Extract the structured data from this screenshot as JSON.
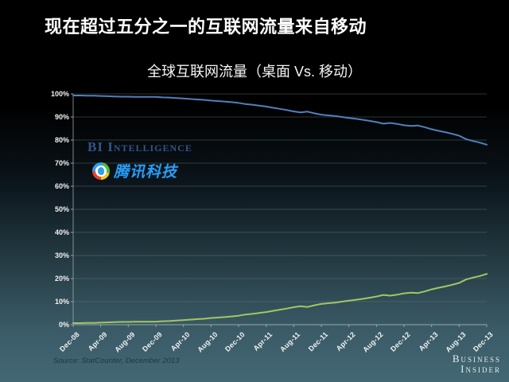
{
  "slide": {
    "title": "现在超过五分之一的互联网流量来自移动",
    "watermark": "BI Intelligence",
    "tencent_logo_text": "腾讯科技",
    "source": "Source: StatCounter, December 2013",
    "brand_line1": "Business",
    "brand_line2": "Insider"
  },
  "colors": {
    "background_top": "#000000",
    "background_bottom": "#436874",
    "title_text": "#ffffff",
    "grid": "#6e7d82",
    "axis": "#9aa7ab",
    "desktop_line": "#4f81bd",
    "mobile_line": "#a3c662",
    "watermark_text": "#33538a",
    "tencent_blue": "#2b9df0",
    "source_text": "#1e3842",
    "brand_text": "#e4edee"
  },
  "chart_data": {
    "type": "line",
    "title": "全球互联网流量（桌面 Vs. 移动）",
    "xlabel": "",
    "ylabel": "",
    "ylim": [
      0,
      100
    ],
    "grid": true,
    "legend": "none",
    "y_tick_labels": [
      "0%",
      "10%",
      "20%",
      "30%",
      "40%",
      "50%",
      "60%",
      "70%",
      "80%",
      "90%",
      "100%"
    ],
    "x_tick_labels": [
      "Dec-08",
      "Apr-09",
      "Aug-09",
      "Dec-09",
      "Apr-10",
      "Aug-10",
      "Dec-10",
      "Apr-11",
      "Aug-11",
      "Dec-11",
      "Apr-12",
      "Aug-12",
      "Dec-12",
      "Apr-13",
      "Aug-13",
      "Dec-13"
    ],
    "x_tick_every_n_points": 4,
    "x_unit": "month",
    "series": [
      {
        "name": "桌面",
        "color": "#4f81bd",
        "values": [
          99.3,
          99.3,
          99.2,
          99.2,
          99.1,
          99.0,
          98.9,
          98.8,
          98.8,
          98.7,
          98.7,
          98.7,
          98.7,
          98.5,
          98.4,
          98.2,
          98.0,
          97.8,
          97.6,
          97.4,
          97.1,
          96.9,
          96.7,
          96.4,
          96.1,
          95.6,
          95.3,
          94.9,
          94.5,
          94.0,
          93.5,
          93.0,
          92.4,
          92.0,
          92.3,
          91.6,
          91.0,
          90.7,
          90.4,
          90.0,
          89.6,
          89.2,
          88.8,
          88.3,
          87.8,
          87.1,
          87.4,
          87.0,
          86.4,
          86.1,
          86.3,
          85.6,
          84.7,
          84.0,
          83.4,
          82.7,
          81.9,
          80.4,
          79.6,
          78.9,
          78.0
        ]
      },
      {
        "name": "移动",
        "color": "#a3c662",
        "values": [
          0.7,
          0.7,
          0.8,
          0.8,
          0.9,
          1.0,
          1.1,
          1.2,
          1.2,
          1.3,
          1.3,
          1.3,
          1.3,
          1.5,
          1.6,
          1.8,
          2.0,
          2.2,
          2.4,
          2.6,
          2.9,
          3.1,
          3.3,
          3.6,
          3.9,
          4.4,
          4.7,
          5.1,
          5.5,
          6.0,
          6.5,
          7.0,
          7.6,
          8.0,
          7.7,
          8.4,
          9.0,
          9.3,
          9.6,
          10.0,
          10.4,
          10.8,
          11.2,
          11.7,
          12.2,
          12.9,
          12.6,
          13.0,
          13.6,
          13.9,
          13.7,
          14.4,
          15.3,
          16.0,
          16.6,
          17.3,
          18.1,
          19.6,
          20.4,
          21.1,
          22.0
        ]
      }
    ]
  }
}
